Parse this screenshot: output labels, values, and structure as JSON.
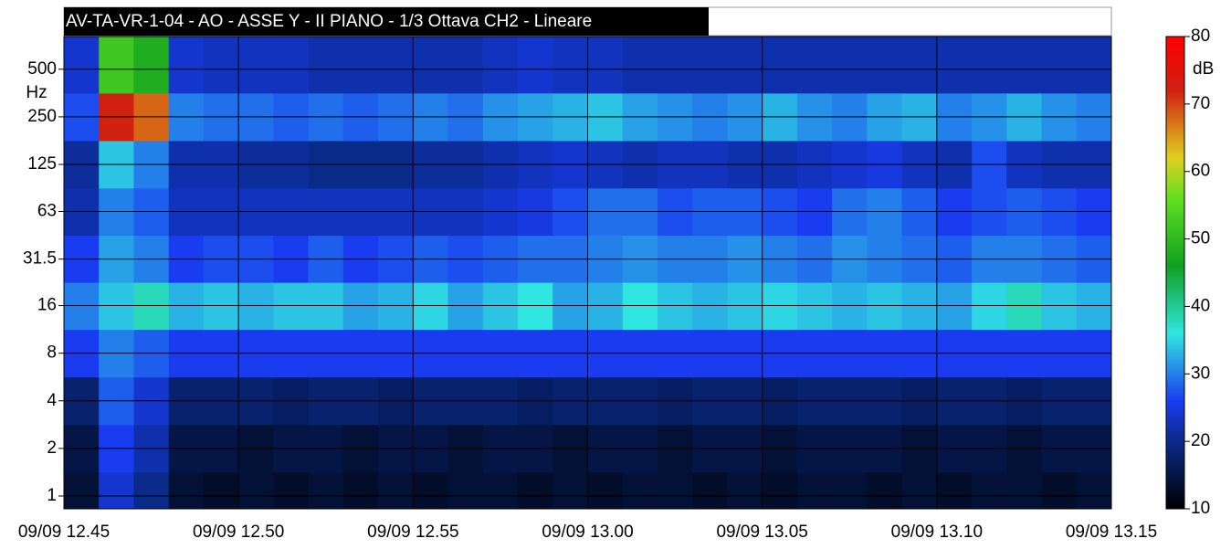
{
  "chart_data": {
    "type": "heatmap",
    "title": "AV-TA-VR-1-04 - AO - ASSE Y - II PIANO - 1/3 Ottava CH2 - Lineare",
    "y_label": "Hz",
    "colorbar_label": "dB",
    "y_log": true,
    "grid": true,
    "xlim": [
      0,
      30
    ],
    "xticks": [
      {
        "value": 0,
        "label": "09/09 12.45"
      },
      {
        "value": 5,
        "label": "09/09 12.50"
      },
      {
        "value": 10,
        "label": "09/09 12.55"
      },
      {
        "value": 15,
        "label": "09/09 13.00"
      },
      {
        "value": 20,
        "label": "09/09 13.05"
      },
      {
        "value": 25,
        "label": "09/09 13.10"
      },
      {
        "value": 30,
        "label": "09/09 13.15"
      }
    ],
    "ylim": [
      0.83,
      805
    ],
    "yticks": [
      1,
      2,
      4,
      8,
      16,
      31.5,
      63,
      125,
      250,
      500
    ],
    "y": [
      1,
      2,
      4,
      8,
      16,
      31.5,
      63,
      125,
      250,
      500
    ],
    "zlim": [
      10,
      80
    ],
    "zticks": [
      10,
      20,
      30,
      40,
      50,
      60,
      70,
      80
    ],
    "colormap": [
      {
        "value": 10,
        "color": "#000000"
      },
      {
        "value": 20,
        "color": "#0a2a8a"
      },
      {
        "value": 26,
        "color": "#1a3cf0"
      },
      {
        "value": 36,
        "color": "#30e6e0"
      },
      {
        "value": 46,
        "color": "#10a020"
      },
      {
        "value": 56,
        "color": "#60e020"
      },
      {
        "value": 62,
        "color": "#e0d020"
      },
      {
        "value": 72,
        "color": "#d02010"
      },
      {
        "value": 80,
        "color": "#ff0000"
      }
    ],
    "values": [
      [
        14,
        24,
        20,
        14,
        13,
        14,
        13,
        14,
        13,
        14,
        13,
        14,
        14,
        13,
        14,
        13,
        14,
        14,
        13,
        14,
        13,
        14,
        14,
        13,
        14,
        13,
        14,
        14,
        13,
        14
      ],
      [
        15,
        26,
        22,
        15,
        15,
        14,
        15,
        15,
        14,
        15,
        15,
        14,
        15,
        15,
        14,
        15,
        15,
        14,
        15,
        15,
        14,
        15,
        15,
        15,
        14,
        15,
        15,
        14,
        15,
        15
      ],
      [
        18,
        28,
        24,
        18,
        18,
        18,
        17,
        18,
        18,
        17,
        18,
        18,
        18,
        17,
        18,
        18,
        18,
        17,
        18,
        18,
        17,
        18,
        18,
        18,
        17,
        18,
        18,
        17,
        18,
        18
      ],
      [
        26,
        30,
        28,
        26,
        26,
        26,
        26,
        26,
        26,
        26,
        26,
        26,
        26,
        26,
        26,
        26,
        26,
        26,
        26,
        26,
        26,
        26,
        26,
        26,
        26,
        26,
        26,
        26,
        26,
        26
      ],
      [
        30,
        34,
        38,
        33,
        34,
        33,
        34,
        34,
        32,
        33,
        35,
        32,
        34,
        36,
        32,
        33,
        36,
        34,
        33,
        34,
        35,
        34,
        33,
        34,
        33,
        32,
        35,
        38,
        34,
        33
      ],
      [
        26,
        32,
        30,
        26,
        27,
        27,
        26,
        28,
        26,
        27,
        28,
        27,
        28,
        29,
        29,
        30,
        31,
        30,
        30,
        31,
        30,
        29,
        31,
        30,
        29,
        28,
        30,
        30,
        29,
        28
      ],
      [
        22,
        30,
        28,
        23,
        23,
        23,
        23,
        23,
        23,
        23,
        23,
        23,
        24,
        25,
        27,
        29,
        29,
        27,
        28,
        28,
        27,
        26,
        29,
        30,
        28,
        26,
        27,
        28,
        27,
        26
      ],
      [
        21,
        34,
        30,
        22,
        22,
        21,
        21,
        20,
        20,
        20,
        21,
        21,
        22,
        23,
        24,
        23,
        22,
        23,
        23,
        22,
        22,
        23,
        24,
        25,
        23,
        22,
        27,
        23,
        22,
        22
      ],
      [
        27,
        72,
        68,
        30,
        29,
        29,
        28,
        29,
        28,
        29,
        30,
        29,
        31,
        32,
        33,
        34,
        32,
        31,
        30,
        31,
        33,
        31,
        30,
        32,
        33,
        30,
        31,
        33,
        31,
        30
      ],
      [
        24,
        52,
        48,
        24,
        23,
        23,
        23,
        22,
        22,
        22,
        22,
        22,
        23,
        24,
        23,
        23,
        22,
        22,
        22,
        22,
        22,
        22,
        22,
        22,
        22,
        22,
        22,
        22,
        22,
        22
      ]
    ]
  }
}
